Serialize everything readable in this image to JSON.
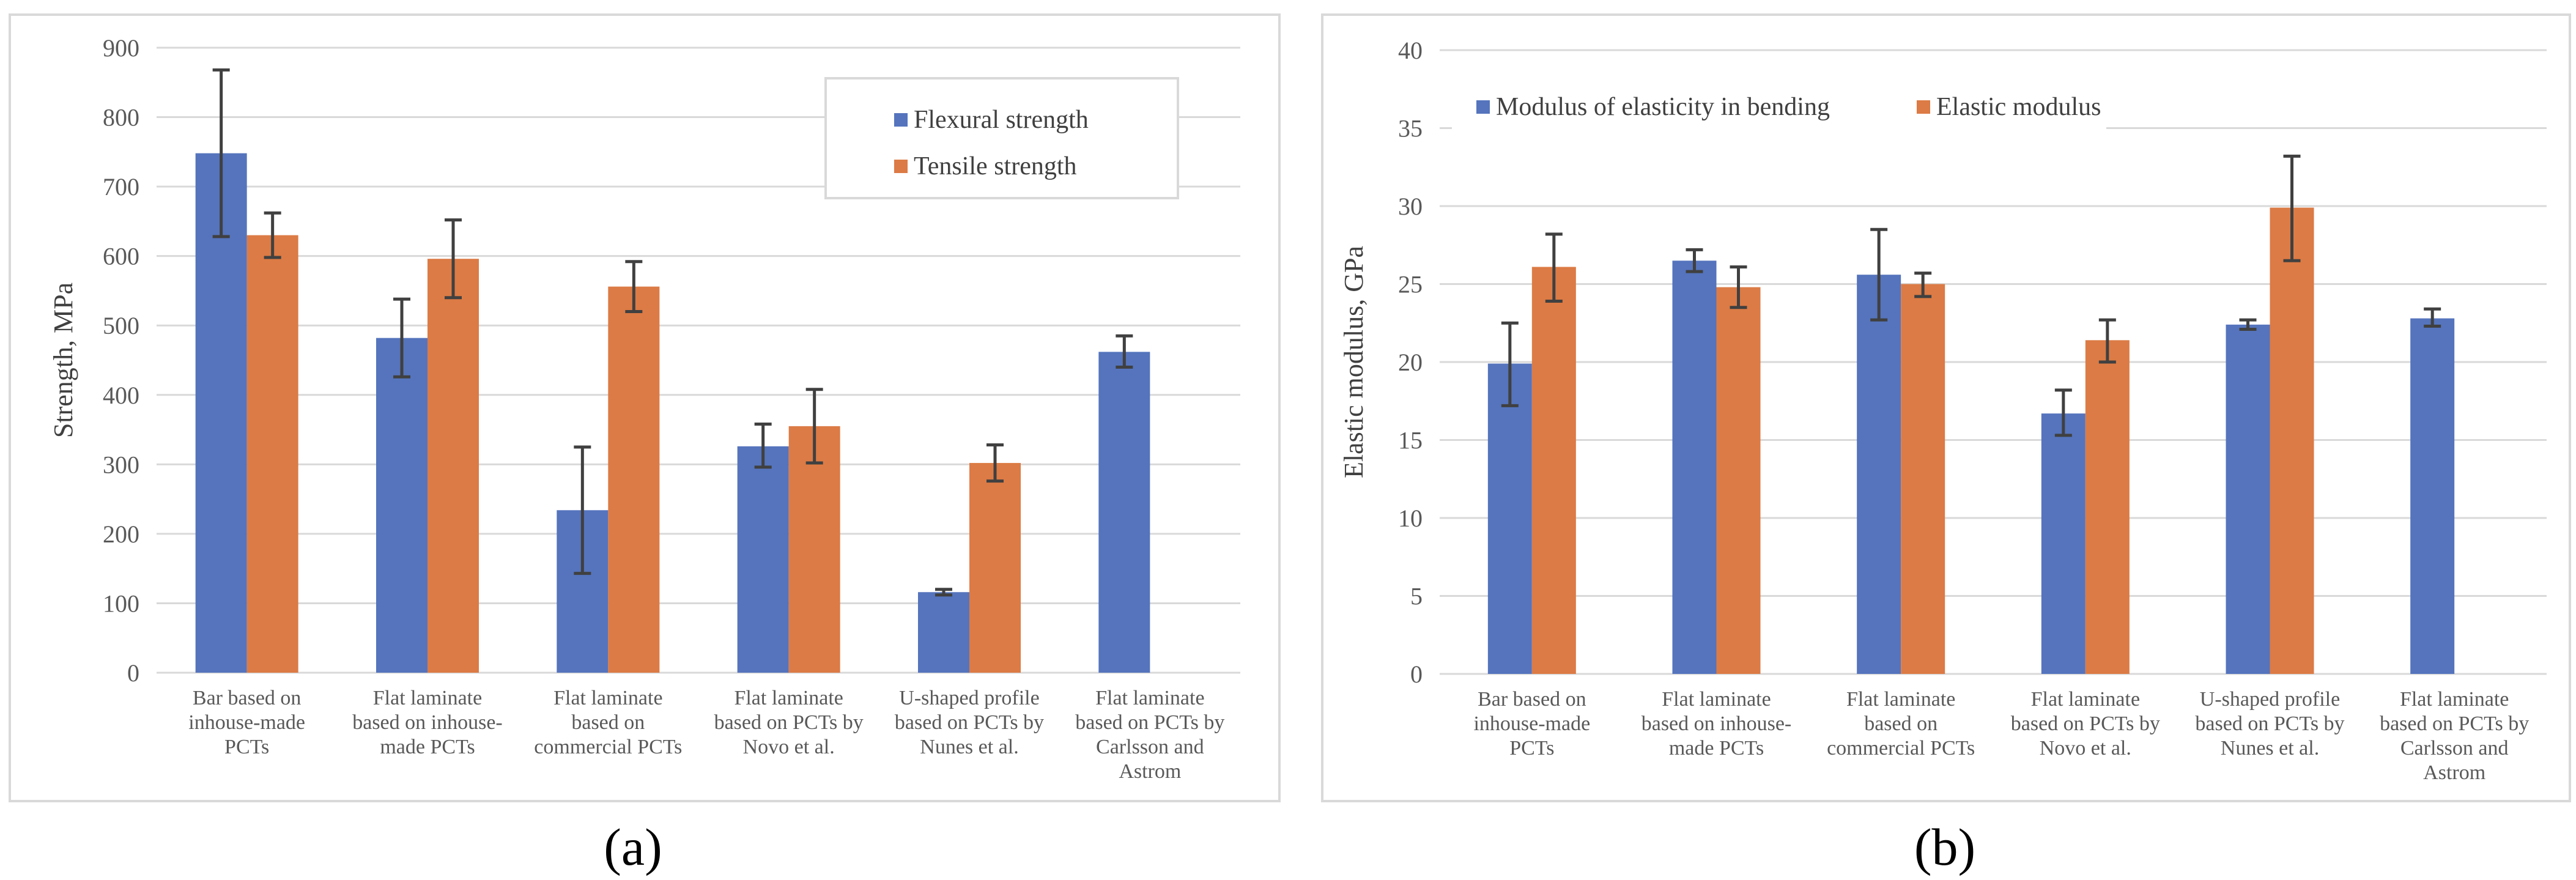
{
  "captions": {
    "a": "(a)",
    "b": "(b)"
  },
  "colors": {
    "blue": "#5574bd",
    "orange": "#dc7b45",
    "grid": "#d9d9d9",
    "err": "#404040"
  },
  "chart_data": [
    {
      "id": "a",
      "type": "bar",
      "title": "",
      "xlabel": "",
      "ylabel": "Strength, MPa",
      "ylim": [
        0,
        900
      ],
      "yticks": [
        "0",
        "100",
        "200",
        "300",
        "400",
        "500",
        "600",
        "700",
        "800",
        "900"
      ],
      "grid": true,
      "legend_position": "top-right",
      "categories": [
        [
          "Bar based on",
          "inhouse-made",
          "PCTs"
        ],
        [
          "Flat laminate",
          "based on inhouse-",
          "made PCTs"
        ],
        [
          "Flat laminate",
          "based on",
          "commercial PCTs"
        ],
        [
          "Flat laminate",
          "based on PCTs by",
          "Novo et al."
        ],
        [
          "U-shaped profile",
          "based on PCTs by",
          "Nunes et al."
        ],
        [
          "Flat laminate",
          "based on PCTs by",
          "Carlsson and",
          "Astrom"
        ]
      ],
      "series": [
        {
          "name": "Flexural strength",
          "color": "#5574bd",
          "values": [
            748,
            482,
            234,
            326,
            116,
            462
          ],
          "err_low": [
            628,
            426,
            143,
            296,
            112,
            440
          ],
          "err_high": [
            868,
            538,
            325,
            358,
            120,
            485
          ]
        },
        {
          "name": "Tensile strength",
          "color": "#dc7b45",
          "values": [
            630,
            596,
            556,
            355,
            302,
            null
          ],
          "err_low": [
            598,
            540,
            520,
            302,
            276,
            null
          ],
          "err_high": [
            662,
            652,
            592,
            408,
            328,
            null
          ]
        }
      ]
    },
    {
      "id": "b",
      "type": "bar",
      "title": "",
      "xlabel": "",
      "ylabel": "Elastic modulus, GPa",
      "ylim": [
        0,
        40
      ],
      "yticks": [
        "0",
        "5",
        "10",
        "15",
        "20",
        "25",
        "30",
        "35",
        "40"
      ],
      "grid": true,
      "legend_position": "top",
      "categories": [
        [
          "Bar based on",
          "inhouse-made",
          "PCTs"
        ],
        [
          "Flat laminate",
          "based on inhouse-",
          "made PCTs"
        ],
        [
          "Flat laminate",
          "based on",
          "commercial PCTs"
        ],
        [
          "Flat laminate",
          "based on PCTs by",
          "Novo et al."
        ],
        [
          "U-shaped profile",
          "based on PCTs by",
          "Nunes et al."
        ],
        [
          "Flat laminate",
          "based on PCTs by",
          "Carlsson and",
          "Astrom"
        ]
      ],
      "series": [
        {
          "name": "Modulus of elasticity in bending",
          "color": "#5574bd",
          "values": [
            19.9,
            26.5,
            25.6,
            16.7,
            22.4,
            22.8
          ],
          "err_low": [
            17.2,
            25.8,
            22.7,
            15.3,
            22.1,
            22.3
          ],
          "err_high": [
            22.5,
            27.2,
            28.5,
            18.2,
            22.7,
            23.4
          ]
        },
        {
          "name": "Elastic modulus",
          "color": "#dc7b45",
          "values": [
            26.1,
            24.8,
            25.0,
            21.4,
            29.9,
            null
          ],
          "err_low": [
            23.9,
            23.5,
            24.2,
            20.0,
            26.5,
            null
          ],
          "err_high": [
            28.2,
            26.1,
            25.7,
            22.7,
            33.2,
            null
          ]
        }
      ]
    }
  ]
}
